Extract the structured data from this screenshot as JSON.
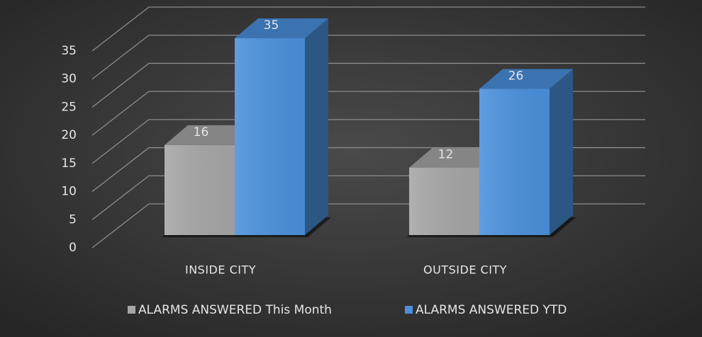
{
  "chart_data": {
    "type": "bar3d",
    "categories": [
      "INSIDE CITY",
      "OUTSIDE CITY"
    ],
    "series": [
      {
        "name": "ALARMS ANSWERED This Month",
        "color": "#a6a6a6",
        "values": [
          16,
          12
        ]
      },
      {
        "name": "ALARMS ANSWERED YTD",
        "color": "#4a90dc",
        "values": [
          35,
          26
        ]
      }
    ],
    "ylim": [
      0,
      35
    ],
    "yticks": [
      0,
      5,
      10,
      15,
      20,
      25,
      30,
      35
    ],
    "grid": true,
    "legend": "bottom"
  }
}
